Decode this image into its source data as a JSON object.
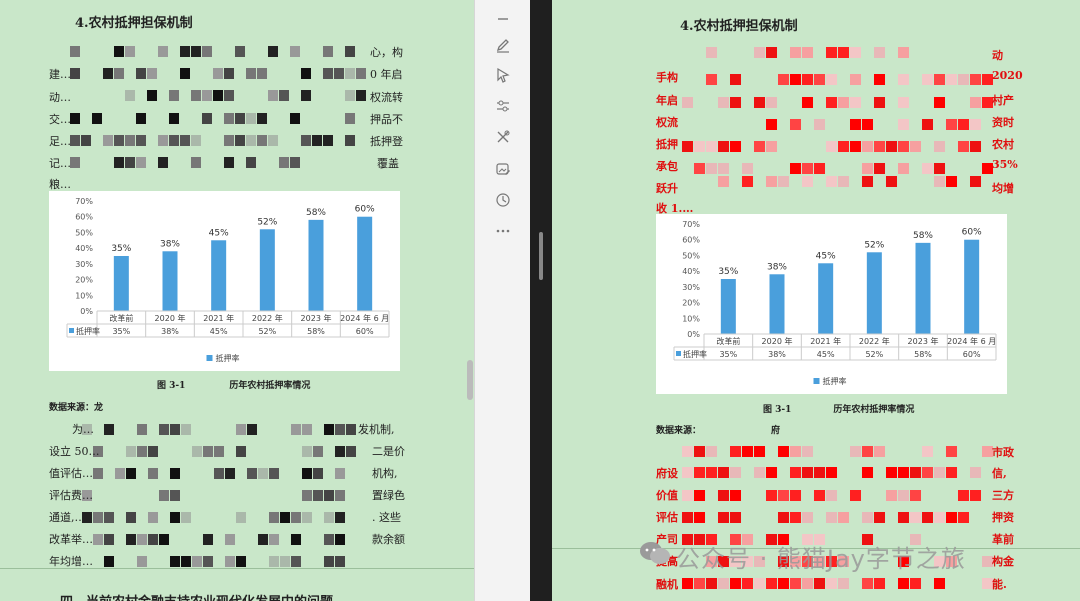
{
  "left": {
    "title": "4.农村抵押担保机制",
    "lines": [
      "心，构",
      "建…",
      "0 年启",
      "动…",
      "权流转",
      "交…",
      "押品不",
      "足…",
      "抵押登",
      "记…",
      "覆盖",
      "粮…",
      "为…",
      "发机制,",
      "设立 50…",
      "二是价",
      "值评估…",
      "机构,",
      "评估费…",
      "置绿色",
      "通道,…",
      ". 这些",
      "改革举…",
      "款余额",
      "年均增…"
    ],
    "caption": "图 3-1",
    "caption_tail": "历年农村抵押率情况",
    "source": "数据来源：",
    "source_tail": "龙",
    "cut_heading": "四、当前农村金融支持农业现代化发展中的问题"
  },
  "right": {
    "title": "4.农村抵押担保机制",
    "lines_left": [
      "手构",
      "年启",
      "权流",
      "抵押",
      "承包",
      "跃升",
      "收 1.…"
    ],
    "lines_right": [
      "动",
      "2020",
      "村产",
      "资时",
      "农村",
      "35%",
      "均增"
    ],
    "caption": "图 3-1",
    "caption_tail": "历年农村抵押率情况",
    "source": "数据来源：",
    "source_tail": "府",
    "lines2_left": [
      "府设",
      "价值",
      "评估",
      "产司",
      "提高",
      "融机"
    ],
    "lines2_right": [
      "市政",
      "信,",
      "三方",
      "押资",
      "革前",
      "构金",
      "能."
    ]
  },
  "watermark": "公众号 · 熊猫Jay字节之旅",
  "toolbar": {
    "icons": [
      "minus-icon",
      "pen-icon",
      "cursor-icon",
      "sliders-icon",
      "tools-icon",
      "image-edit-icon",
      "history-icon",
      "more-icon"
    ]
  },
  "chart_data": {
    "type": "bar",
    "categories": [
      "改革前",
      "2020 年",
      "2021 年",
      "2022 年",
      "2023 年",
      "2024 年 6 月"
    ],
    "series": [
      {
        "name": "抵押率",
        "values": [
          35,
          38,
          45,
          52,
          58,
          60
        ]
      }
    ],
    "data_labels": [
      "35%",
      "38%",
      "45%",
      "52%",
      "58%",
      "60%"
    ],
    "table_values": [
      "35%",
      "38%",
      "45%",
      "52%",
      "58%",
      "60%"
    ],
    "ylim": [
      0,
      70
    ],
    "yticks": [
      "0%",
      "10%",
      "20%",
      "30%",
      "40%",
      "50%",
      "60%",
      "70%"
    ],
    "legend": "bottom",
    "color": "#4a9fdc"
  }
}
